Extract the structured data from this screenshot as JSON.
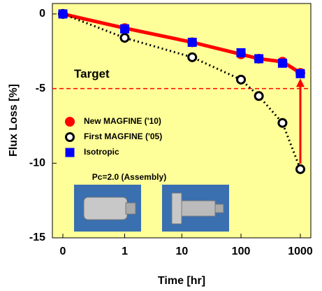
{
  "chart_data": {
    "type": "line",
    "x_label": "Time  [hr]",
    "y_label": "Flux Loss [%]",
    "xscale": "log",
    "xlim": [
      0,
      1000
    ],
    "xticks": [
      0,
      1,
      10,
      100,
      1000
    ],
    "ylim": [
      -15,
      0.7
    ],
    "yticks": [
      0,
      -5,
      -10,
      -15
    ],
    "series": [
      {
        "name": "New MAGFINE ('10)",
        "color": "#ff0000",
        "marker": "circle",
        "x": [
          0,
          1,
          15,
          100,
          200,
          500,
          1000
        ],
        "values": [
          0,
          -0.95,
          -1.9,
          -2.7,
          -3.0,
          -3.2,
          -3.95
        ]
      },
      {
        "name": "First MAGFINE ('05)",
        "color": "#000000",
        "marker": "open-circle",
        "x": [
          0,
          1,
          15,
          100,
          200,
          500,
          1000
        ],
        "values": [
          0,
          -1.6,
          -2.9,
          -4.4,
          -5.5,
          -7.3,
          -10.4
        ]
      },
      {
        "name": "Isotropic",
        "color": "#0000ff",
        "marker": "square",
        "x": [
          0,
          1,
          15,
          100,
          200,
          500,
          1000
        ],
        "values": [
          0,
          -1.0,
          -1.9,
          -2.6,
          -3.0,
          -3.3,
          -4.0
        ]
      }
    ],
    "target": {
      "label": "Target",
      "value": -5,
      "color": "#ff0000"
    },
    "annotation": "Pc=2.0 (Assembly)",
    "background": "#ffff99"
  }
}
